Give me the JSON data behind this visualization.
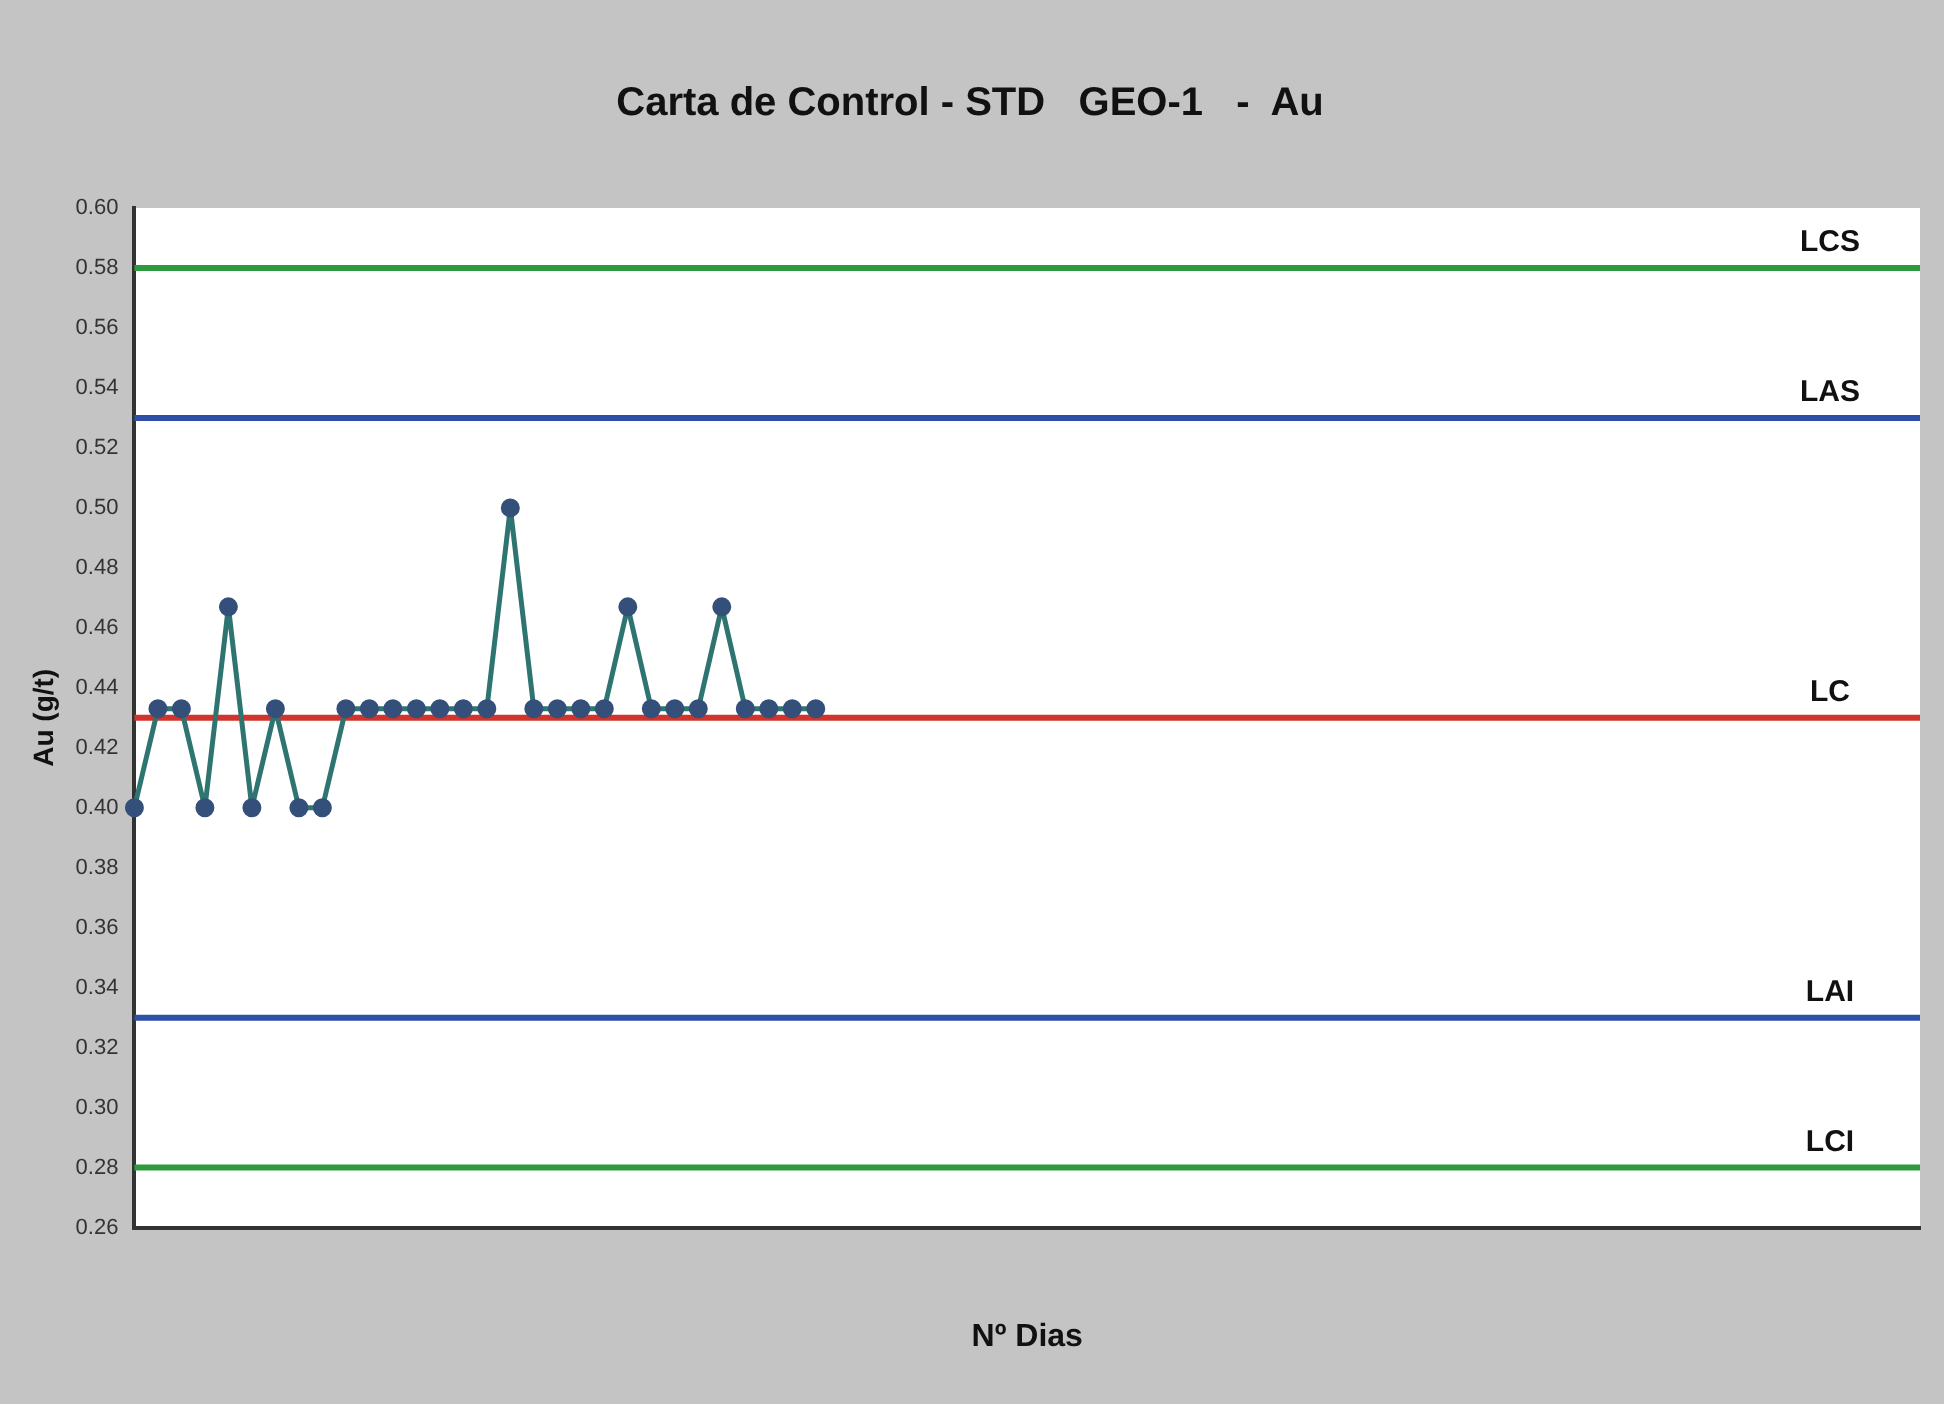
{
  "chart_data": {
    "type": "line",
    "title": "Carta de Control - STD   GEO-1   -  Au",
    "xlabel": "Nº Dias",
    "ylabel": "Au (g/t)",
    "categories": [
      null,
      null,
      null,
      null,
      null,
      null,
      null,
      null,
      null,
      null,
      null,
      null,
      null,
      null,
      null,
      null,
      null,
      null,
      null,
      null,
      null,
      null,
      null,
      null,
      null,
      null,
      null,
      null,
      null,
      null,
      null,
      null,
      null,
      null,
      null,
      null,
      null,
      null,
      null,
      null,
      null,
      null,
      null,
      null,
      null,
      null,
      null,
      null,
      null,
      null,
      null,
      null,
      null,
      null,
      null,
      null,
      null,
      null,
      null,
      null,
      null,
      null,
      null,
      null,
      null,
      null,
      null,
      null,
      null,
      null,
      null,
      null,
      null,
      null,
      null,
      null,
      null
    ],
    "series": [
      {
        "color": "#2e7470",
        "values": [
          0.4,
          0.433,
          0.433,
          0.4,
          0.467,
          0.4,
          0.433,
          0.4,
          0.4,
          0.433,
          0.433,
          0.433,
          0.433,
          0.433,
          0.433,
          0.433,
          0.5,
          0.433,
          0.433,
          0.433,
          0.433,
          0.467,
          0.433,
          0.433,
          0.433,
          0.467,
          0.433,
          0.433,
          0.433,
          0.433,
          null,
          null,
          null,
          null,
          null,
          null,
          null,
          null,
          null,
          null,
          null,
          null,
          null,
          null,
          null,
          null,
          null,
          null,
          null,
          null,
          null,
          null,
          null,
          null,
          null,
          null,
          null,
          null,
          null,
          null,
          null,
          null,
          null,
          null,
          null,
          null,
          null,
          null,
          null,
          null,
          null,
          null,
          null,
          null,
          null,
          null,
          null
        ]
      }
    ],
    "ylim": [
      0.26,
      0.6
    ],
    "yticks": [
      {
        "value": 0.26,
        "label": "0.26"
      },
      {
        "value": 0.28,
        "label": "0.28"
      },
      {
        "value": 0.3,
        "label": "0.30"
      },
      {
        "value": 0.32,
        "label": "0.32"
      },
      {
        "value": 0.34,
        "label": "0.34"
      },
      {
        "value": 0.36,
        "label": "0.36"
      },
      {
        "value": 0.38,
        "label": "0.38"
      },
      {
        "value": 0.4,
        "label": "0.40"
      },
      {
        "value": 0.42,
        "label": "0.42"
      },
      {
        "value": 0.44,
        "label": "0.44"
      },
      {
        "value": 0.46,
        "label": "0.46"
      },
      {
        "value": 0.48,
        "label": "0.48"
      },
      {
        "value": 0.5,
        "label": "0.50"
      },
      {
        "value": 0.52,
        "label": "0.52"
      },
      {
        "value": 0.54,
        "label": "0.54"
      },
      {
        "value": 0.56,
        "label": "0.56"
      },
      {
        "value": 0.58,
        "label": "0.58"
      },
      {
        "value": 0.6,
        "label": "0.60"
      }
    ],
    "ref_lines": [
      {
        "axis": "y",
        "value": 0.58,
        "label": "LCS",
        "color": "#2e9a3e"
      },
      {
        "axis": "y",
        "value": 0.53,
        "label": "LAS",
        "color": "#2e4fa8"
      },
      {
        "axis": "y",
        "value": 0.43,
        "label": "LC",
        "color": "#d0342c"
      },
      {
        "axis": "y",
        "value": 0.33,
        "label": "LAI",
        "color": "#2e4fa8"
      },
      {
        "axis": "y",
        "value": 0.28,
        "label": "LCI",
        "color": "#2e9a3e"
      }
    ],
    "grid": false,
    "legend": false,
    "marker": "circle",
    "line_style": "solid",
    "tick_labels": "y"
  }
}
